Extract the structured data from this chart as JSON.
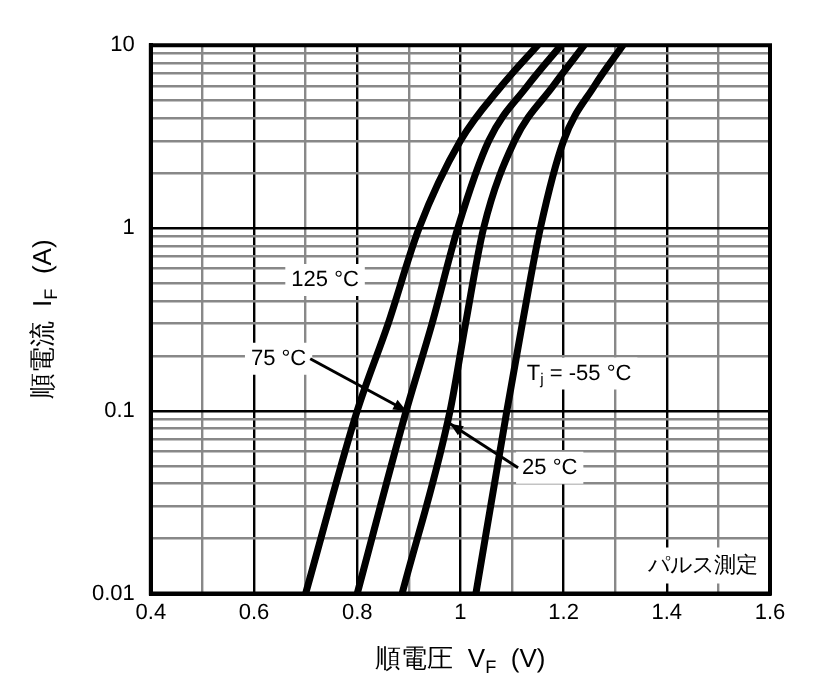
{
  "chart_data": {
    "type": "line",
    "xlabel": "順電圧  V$_{F}$  (V)",
    "ylabel": "順電流  I$_{F}$  (A)",
    "series": [
      {
        "color": "#000000",
        "x": [
          0.7,
          0.8,
          0.86,
          0.92,
          1.0,
          1.08,
          1.15
        ],
        "values": [
          0.01,
          0.1,
          0.3,
          1,
          3,
          6,
          10
        ]
      },
      {
        "color": "#000000",
        "x": [
          0.8,
          0.895,
          0.945,
          0.995,
          1.055,
          1.13,
          1.195
        ],
        "values": [
          0.01,
          0.1,
          0.3,
          1,
          3,
          6,
          10
        ]
      },
      {
        "color": "#000000",
        "x": [
          0.887,
          0.98,
          1.01,
          1.045,
          1.105,
          1.18,
          1.24
        ],
        "values": [
          0.01,
          0.1,
          0.3,
          1,
          3,
          6,
          10
        ]
      },
      {
        "color": "#000000",
        "x": [
          1.03,
          1.09,
          1.12,
          1.155,
          1.2,
          1.26,
          1.315
        ],
        "values": [
          0.01,
          0.1,
          0.3,
          1,
          3,
          6,
          10
        ]
      }
    ],
    "xlim": [
      0.4,
      1.6
    ],
    "xticks": [
      0.4,
      {
        "value": 0.5,
        "label": null
      },
      0.6,
      {
        "value": 0.7,
        "label": null
      },
      0.8,
      {
        "value": 0.9,
        "label": null
      },
      1,
      {
        "value": 1.1,
        "label": null
      },
      1.2,
      {
        "value": 1.3,
        "label": null
      },
      1.4,
      {
        "value": 1.5,
        "label": null
      },
      1.6
    ],
    "ylim": [
      0.01,
      10
    ],
    "yticks": [
      0.01,
      {
        "value": 0.02,
        "label": null
      },
      {
        "value": 0.03,
        "label": null
      },
      {
        "value": 0.04,
        "label": null
      },
      {
        "value": 0.05,
        "label": null
      },
      {
        "value": 0.06,
        "label": null
      },
      {
        "value": 0.07,
        "label": null
      },
      {
        "value": 0.08,
        "label": null
      },
      {
        "value": 0.09,
        "label": null
      },
      0.1,
      {
        "value": 0.2,
        "label": null
      },
      {
        "value": 0.3,
        "label": null
      },
      {
        "value": 0.4,
        "label": null
      },
      {
        "value": 0.5,
        "label": null
      },
      {
        "value": 0.6,
        "label": null
      },
      {
        "value": 0.7,
        "label": null
      },
      {
        "value": 0.8,
        "label": null
      },
      {
        "value": 0.9,
        "label": null
      },
      1,
      {
        "value": 2,
        "label": null
      },
      {
        "value": 3,
        "label": null
      },
      {
        "value": 4,
        "label": null
      },
      {
        "value": 5,
        "label": null
      },
      {
        "value": 6,
        "label": null
      },
      {
        "value": 7,
        "label": null
      },
      {
        "value": 8,
        "label": null
      },
      {
        "value": 9,
        "label": null
      },
      10
    ],
    "log": "y",
    "grid": true,
    "legend": false,
    "marker": "none",
    "line_style": "solid",
    "annotations": [
      {
        "text": "125 °C",
        "x": 0.9,
        "y": 0.52
      },
      {
        "text": "75 °C",
        "x": 0.895,
        "y": 0.1
      },
      {
        "text": "T$_{j}$ = -55 °C",
        "x": 1.09,
        "y": 0.16
      },
      {
        "text": "25 °C",
        "x": 0.98,
        "y": 0.085
      },
      "パルス測定"
    ]
  }
}
